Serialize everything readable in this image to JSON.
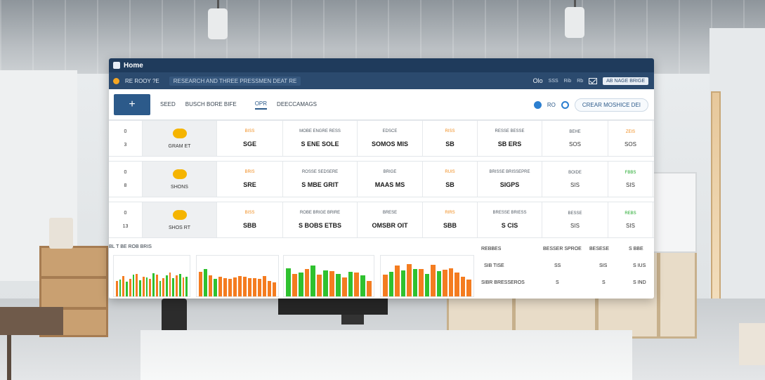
{
  "window": {
    "title": "Home"
  },
  "navbar": {
    "links": [
      "RE ROOY ?E"
    ],
    "path": "RESEARCH AND THREE PRESSMEN DEAT RE",
    "right": {
      "label": "Olo",
      "items": [
        "SSS",
        "Rib",
        "Rb",
        "AB NAGE BRIGE"
      ]
    }
  },
  "toolbar": {
    "add_symbol": "+",
    "tabs": [
      {
        "label": "SEED"
      },
      {
        "label": "BUSCH BORE BIFE"
      },
      {
        "label": "OPR"
      },
      {
        "label": "DEECCAMAGS"
      }
    ],
    "tool_text": "RO",
    "create_label": "CREAR MOSHICE DEI"
  },
  "grid": {
    "rows": [
      {
        "idx": [
          "0",
          "3"
        ],
        "name": "GRAM ET",
        "cols": [
          {
            "hdr": "BISS",
            "val": "SGE",
            "hc": "orange"
          },
          {
            "hdr": "MOBE ENGRE RESS",
            "val": "S ENE SOLE"
          },
          {
            "hdr": "EDSCE",
            "val": "SOMOS MIS"
          },
          {
            "hdr": "RISS",
            "val": "SB",
            "hc": "orange"
          },
          {
            "hdr": "RESSE BESSE",
            "val": "SB ERS"
          },
          {
            "hdr": "BEHE",
            "val": "SOS",
            "light": true
          },
          {
            "hdr": "ZEIS",
            "val": "SOS",
            "hc": "orange",
            "light": true
          }
        ]
      },
      {
        "idx": [
          "0",
          "8"
        ],
        "name": "SHONS",
        "cols": [
          {
            "hdr": "BRIS",
            "val": "SRE",
            "hc": "orange"
          },
          {
            "hdr": "ROSSE SEDSERE",
            "val": "S MBE GRIT"
          },
          {
            "hdr": "BRIGE",
            "val": "MAAS MS"
          },
          {
            "hdr": "RUIS",
            "val": "SB",
            "hc": "orange"
          },
          {
            "hdr": "BRISSE BRISSEPRE",
            "val": "SIGPS"
          },
          {
            "hdr": "BOIDE",
            "val": "SIS",
            "light": true
          },
          {
            "hdr": "FBBS",
            "val": "SIS",
            "hc": "green",
            "light": true
          }
        ]
      },
      {
        "idx": [
          "0",
          "13"
        ],
        "name": "SHOS RT",
        "cols": [
          {
            "hdr": "BISS",
            "val": "SBB",
            "hc": "orange"
          },
          {
            "hdr": "ROBE BRIGE BRIRE",
            "val": "S BOBS ETBS"
          },
          {
            "hdr": "BRESE",
            "val": "OMSBR OIT"
          },
          {
            "hdr": "RIRS",
            "val": "SBB",
            "hc": "orange"
          },
          {
            "hdr": "BRESSE BRIESS",
            "val": "S CIS"
          },
          {
            "hdr": "BESSE",
            "val": "SIS",
            "light": true
          },
          {
            "hdr": "REBS",
            "val": "SIS",
            "hc": "green",
            "light": true
          }
        ]
      }
    ]
  },
  "lower": {
    "section_label": "BL T BE ROB BRIS",
    "mini_table": {
      "header": [
        "REBBES",
        "BESSER SPROE",
        "BESESE",
        "S BBE"
      ],
      "rows": [
        [
          "SIB TISE",
          "SS",
          "SIS",
          "S IUS"
        ],
        [
          "SIBR BRESSEROS",
          "S",
          "S",
          "S IND"
        ]
      ]
    }
  },
  "chart_data": [
    {
      "type": "bar",
      "series": [
        {
          "values": [
            40,
            52,
            45,
            58,
            50,
            44,
            56,
            47,
            60,
            53,
            48
          ],
          "color": "#f47c20"
        },
        {
          "values": [
            42,
            38,
            55,
            41,
            48,
            59,
            40,
            54,
            46,
            57,
            50
          ],
          "color": "#2fc12f"
        }
      ]
    },
    {
      "type": "bar",
      "series": [
        {
          "values": [
            62,
            54,
            50,
            46,
            44,
            48,
            52,
            50,
            47,
            46,
            45,
            52,
            40,
            36
          ],
          "color": "#f47c20"
        },
        {
          "values": [
            70,
            44
          ],
          "color": "#2fc12f"
        }
      ]
    },
    {
      "type": "bar",
      "series": [
        {
          "values": [
            72,
            60,
            78,
            66,
            58,
            62,
            54
          ],
          "color": "#2fc12f"
        },
        {
          "values": [
            58,
            70,
            55,
            64,
            48,
            60,
            40
          ],
          "color": "#f47c20"
        }
      ]
    },
    {
      "type": "bar",
      "series": [
        {
          "values": [
            55,
            78,
            82,
            70,
            80,
            68,
            72,
            60,
            50,
            42
          ],
          "color": "#f47c20"
        },
        {
          "values": [
            62,
            66,
            70,
            58,
            64
          ],
          "color": "#2fc12f"
        }
      ]
    }
  ]
}
